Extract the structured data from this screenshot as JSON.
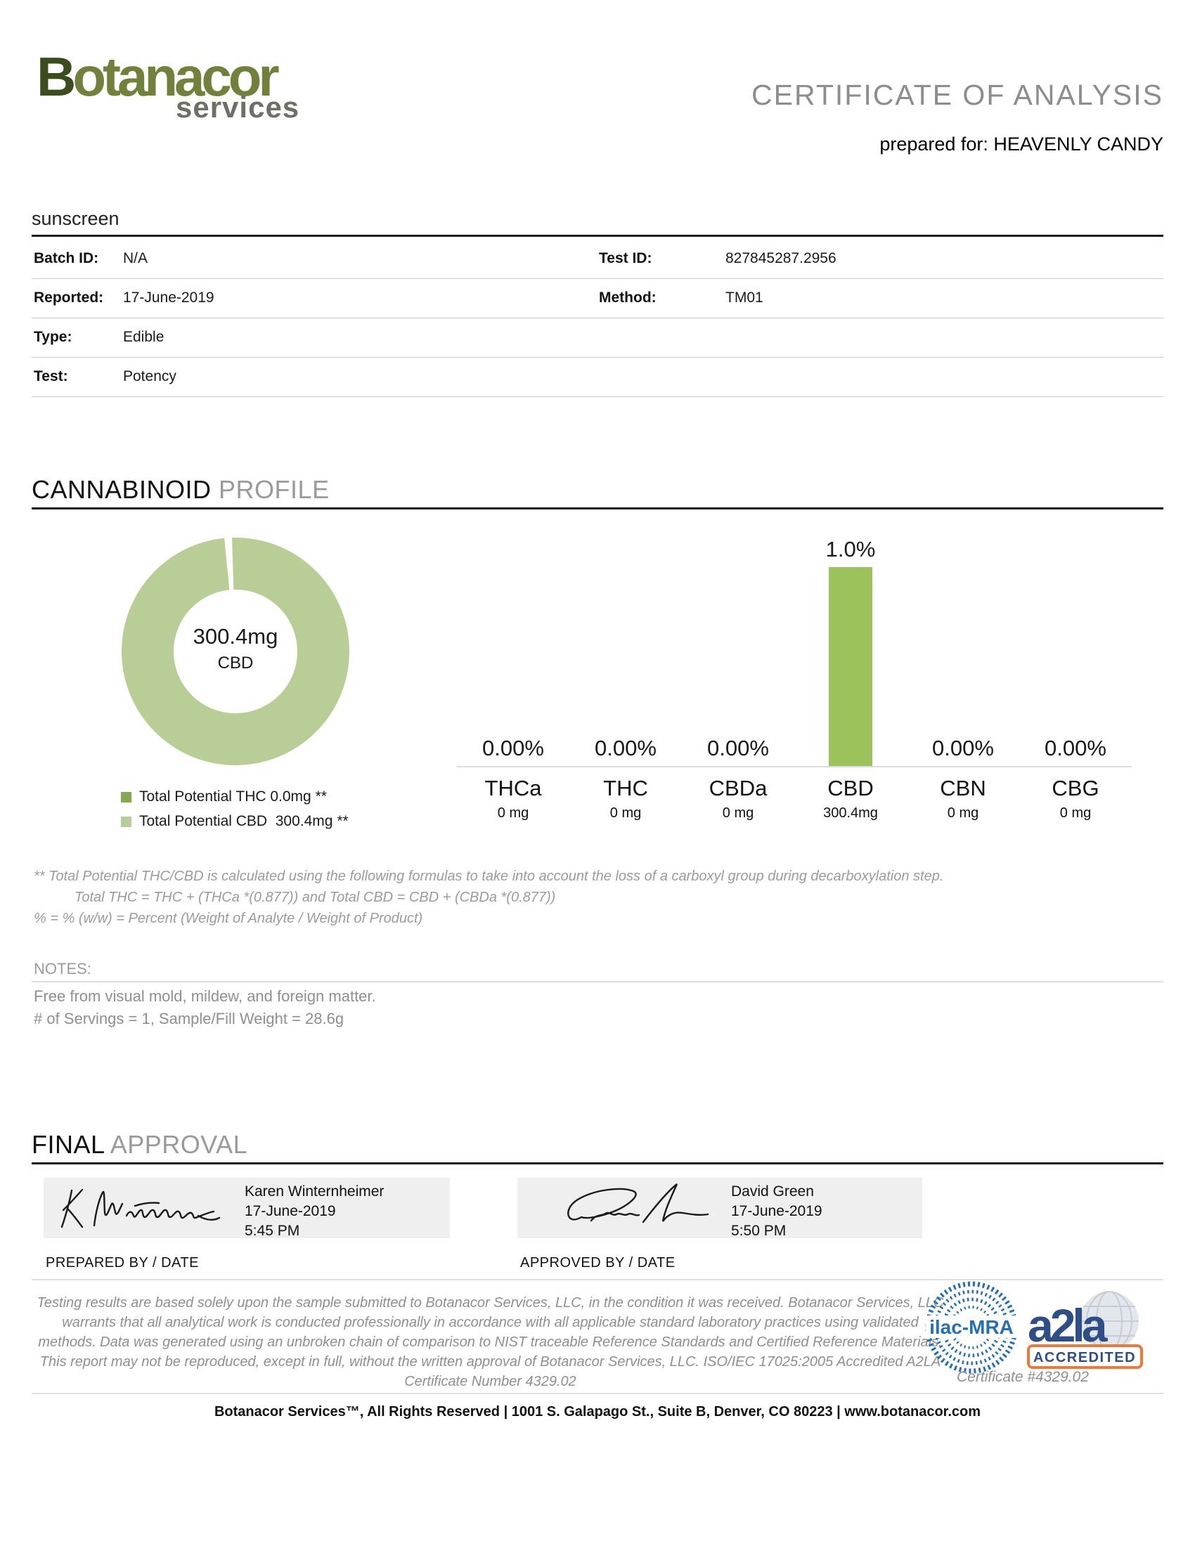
{
  "header": {
    "logo_main_initial": "B",
    "logo_main_rest": "otanacor",
    "logo_sub": "services",
    "title": "CERTIFICATE OF ANALYSIS",
    "prepared_for": "prepared for: HEAVENLY CANDY"
  },
  "sample": {
    "name": "sunscreen",
    "rows": [
      [
        {
          "label": "Batch ID:",
          "value": "N/A"
        },
        {
          "label": "Test ID:",
          "value": "827845287.2956"
        }
      ],
      [
        {
          "label": "Reported:",
          "value": "17-June-2019"
        },
        {
          "label": "Method:",
          "value": "TM01"
        }
      ],
      [
        {
          "label": "Type:",
          "value": "Edible"
        }
      ],
      [
        {
          "label": "Test:",
          "value": "Potency"
        }
      ]
    ]
  },
  "headings": {
    "cannabinoid": {
      "primary": "CANNABINOID",
      "secondary": "PROFILE"
    },
    "final": {
      "primary": "FINAL",
      "secondary": "APPROVAL"
    }
  },
  "chart_data": {
    "type": "bar",
    "title": "CANNABINOID PROFILE",
    "categories": [
      "THCa",
      "THC",
      "CBDa",
      "CBD",
      "CBN",
      "CBG"
    ],
    "values_percent": [
      0.0,
      0.0,
      0.0,
      1.0,
      0.0,
      0.0
    ],
    "value_labels": [
      "0.00%",
      "0.00%",
      "0.00%",
      "1.0%",
      "0.00%",
      "0.00%"
    ],
    "mg_labels": [
      "0 mg",
      "0 mg",
      "0 mg",
      "300.4mg",
      "0 mg",
      "0 mg"
    ],
    "ylim": [
      0,
      1.0
    ],
    "grid": false,
    "bar_color": "#9bc25b",
    "donut": {
      "type": "pie",
      "center_value": "300.4mg",
      "center_label": "CBD",
      "ring_color": "#b9ce96",
      "slices": [
        {
          "name": "Total Potential THC",
          "mg": 0.0
        },
        {
          "name": "Total Potential CBD",
          "mg": 300.4
        }
      ]
    },
    "legend": [
      {
        "swatch": "#86a84f",
        "label": "Total Potential THC 0.0mg **"
      },
      {
        "swatch": "#b9ce96",
        "label": "Total Potential CBD  300.4mg **"
      }
    ],
    "legend_position": "bottom-left"
  },
  "footnotes": {
    "line1": "** Total Potential THC/CBD is calculated using the following formulas to take into account the loss of a carboxyl group during decarboxylation step.",
    "line2": "Total THC = THC + (THCa *(0.877)) and Total CBD = CBD + (CBDa *(0.877))",
    "line3": "% = % (w/w) = Percent (Weight of Analyte / Weight of Product)"
  },
  "notes": {
    "title": "NOTES:",
    "line1": "Free from visual mold, mildew, and foreign matter.",
    "line2": "# of Servings = 1, Sample/Fill Weight = 28.6g"
  },
  "approval": {
    "prepared": {
      "name": "Karen Winternheimer",
      "date": "17-June-2019",
      "time": "5:45 PM",
      "caption": "PREPARED BY / DATE"
    },
    "approved": {
      "name": "David Green",
      "date": "17-June-2019",
      "time": "5:50 PM",
      "caption": "APPROVED BY / DATE"
    }
  },
  "legal": {
    "text": "Testing results are based solely upon the sample submitted to Botanacor Services, LLC, in the condition it was received. Botanacor Services, LLC warrants that all analytical work is conducted professionally in accordance with all applicable standard laboratory practices using validated methods. Data was generated using an unbroken chain of comparison to NIST traceable Reference Standards and Certified Reference Materials. This report may not be reproduced, except in full, without the written approval of Botanacor Services, LLC. ISO/IEC 17025:2005 Accredited A2LA Certificate Number 4329.02",
    "certificate": "Certificate #4329.02"
  },
  "accreditation": {
    "ilac_label": "ilac-MRA",
    "a2la_label": "a2la",
    "accredited_label": "ACCREDITED"
  },
  "footer": {
    "line": "Botanacor Services™, All Rights Reserved  | 1001 S. Galapago St., Suite B, Denver, CO 80223  |  www.botanacor.com"
  },
  "colors": {
    "brand_green_dark": "#3c4c1e",
    "brand_green": "#71813c",
    "donut_ring": "#b9ce96",
    "bar_green": "#9bc25b",
    "accreditation_blue": "#2470b3",
    "a2la_navy": "#2d4e86",
    "a2la_orange": "#e87a3d"
  }
}
